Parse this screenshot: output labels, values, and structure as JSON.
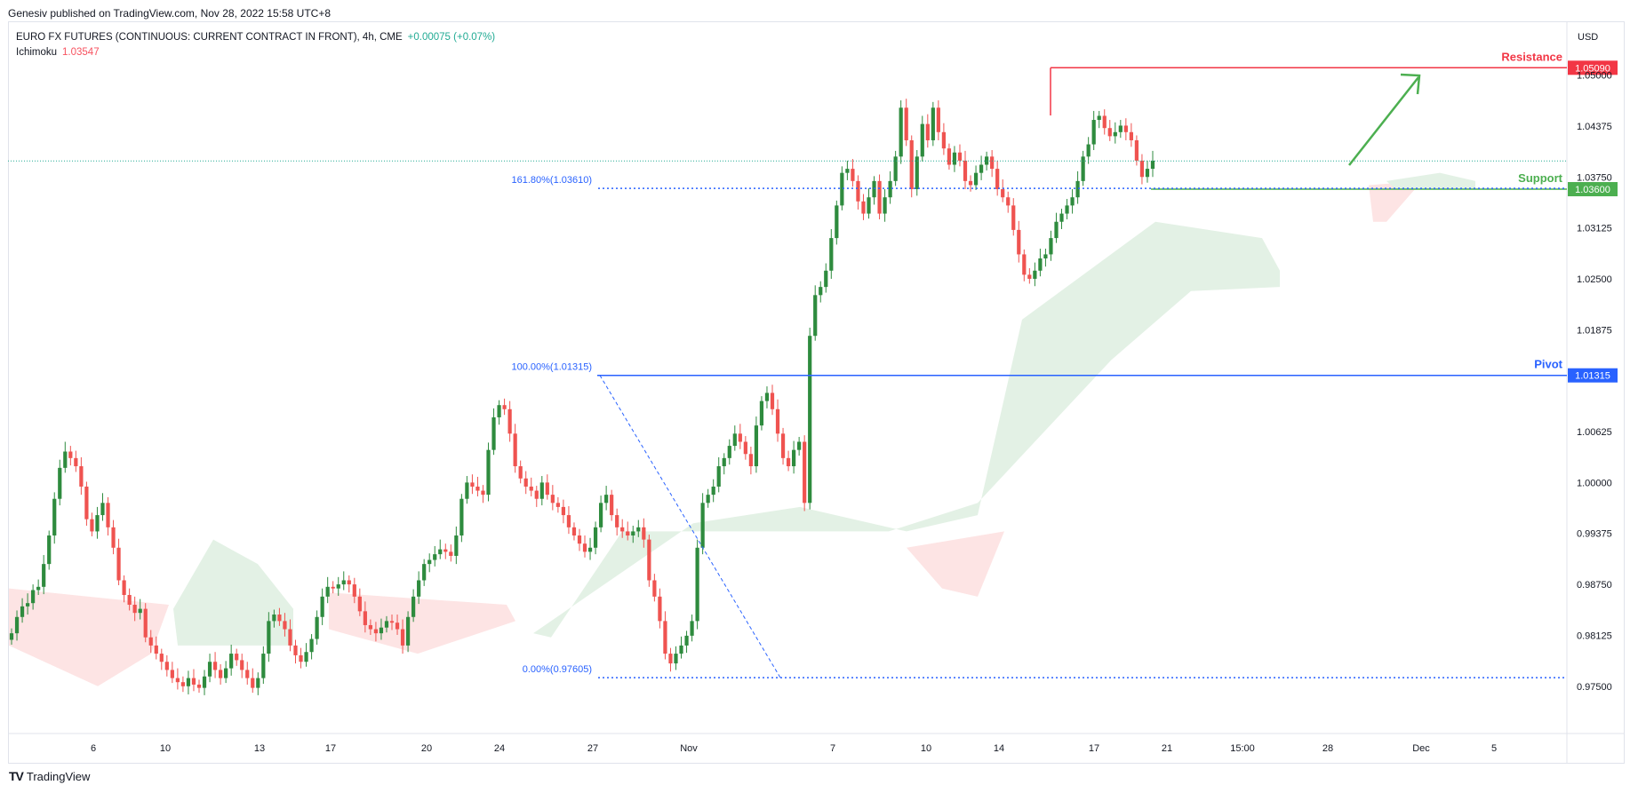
{
  "header": {
    "published": "Genesiv published on TradingView.com, Nov 28, 2022 15:58 UTC+8",
    "symbol": "EURO FX FUTURES (CONTINUOUS: CURRENT CONTRACT IN FRONT), 4h, CME",
    "change": "+0.00075 (+0.07%)",
    "indicator_name": "Ichimoku",
    "indicator_value": "1.03547"
  },
  "footer": {
    "brand": "TradingView",
    "logo_glyph": "TV"
  },
  "chart_data": {
    "type": "candlestick",
    "currency": "USD",
    "ylim": [
      0.9692,
      1.0566
    ],
    "y_ticks": [
      "1.05000",
      "1.04375",
      "1.03750",
      "1.03125",
      "1.02500",
      "1.01875",
      "1.00625",
      "1.00000",
      "0.99375",
      "0.98750",
      "0.98125",
      "0.97500"
    ],
    "x_ticks": [
      "6",
      "10",
      "13",
      "17",
      "20",
      "24",
      "27",
      "Nov",
      "7",
      "10",
      "14",
      "17",
      "21",
      "15:00",
      "28",
      "Dec",
      "5"
    ],
    "colors": {
      "up": "#22ab94",
      "down": "#f7525f",
      "up_body": "#2e8b3e",
      "down_body": "#ef5350",
      "cloud_bull": "#e3f1e5",
      "cloud_bear": "#fde4e4",
      "resistance": "#f23645",
      "support": "#4caf50",
      "pivot": "#2962ff",
      "fib": "#2962ff"
    },
    "levels": [
      {
        "label": "Resistance",
        "price": 1.0509,
        "tag": "1.05090"
      },
      {
        "label": "Support",
        "price": 1.036,
        "tag": "1.03600"
      },
      {
        "label": "Pivot",
        "price": 1.01315,
        "tag": "1.01315"
      }
    ],
    "fibonacci": [
      {
        "label": "161.80%(1.03610)",
        "price": 1.0361
      },
      {
        "label": "100.00%(1.01315)",
        "price": 1.01315
      },
      {
        "label": "0.00%(0.97605)",
        "price": 0.97605
      }
    ],
    "last_price": 1.03947,
    "candles_note": "Approximate closes of 4h candles read from the chart, oldest to newest",
    "closes": [
      0.9815,
      0.9835,
      0.9848,
      0.9852,
      0.9868,
      0.9872,
      0.99,
      0.9935,
      0.998,
      1.0018,
      1.0038,
      1.003,
      1.002,
      0.9995,
      0.9955,
      0.994,
      0.996,
      0.9975,
      0.9945,
      0.992,
      0.988,
      0.9862,
      0.985,
      0.984,
      0.9845,
      0.981,
      0.98,
      0.979,
      0.978,
      0.977,
      0.976,
      0.9755,
      0.975,
      0.976,
      0.9752,
      0.9748,
      0.9762,
      0.978,
      0.977,
      0.976,
      0.9772,
      0.979,
      0.9782,
      0.977,
      0.976,
      0.9748,
      0.976,
      0.979,
      0.983,
      0.9838,
      0.983,
      0.982,
      0.98,
      0.9788,
      0.978,
      0.9792,
      0.9808,
      0.9835,
      0.986,
      0.9872,
      0.987,
      0.9875,
      0.988,
      0.9875,
      0.986,
      0.9842,
      0.9825,
      0.982,
      0.9815,
      0.9822,
      0.983,
      0.9828,
      0.982,
      0.98,
      0.9835,
      0.986,
      0.988,
      0.99,
      0.9905,
      0.9912,
      0.9918,
      0.9915,
      0.991,
      0.9935,
      0.998,
      1.0,
      0.9995,
      0.999,
      0.9985,
      1.004,
      1.008,
      1.0095,
      1.009,
      1.006,
      1.002,
      1.0005,
      0.9995,
      0.999,
      0.998,
      1.0,
      0.9985,
      0.9975,
      0.997,
      0.996,
      0.9945,
      0.9935,
      0.9925,
      0.9915,
      0.992,
      0.9945,
      0.9975,
      0.9985,
      0.996,
      0.9945,
      0.994,
      0.9935,
      0.994,
      0.9945,
      0.993,
      0.988,
      0.986,
      0.983,
      0.979,
      0.9778,
      0.979,
      0.98,
      0.9812,
      0.983,
      0.992,
      0.9975,
      0.9985,
      0.9995,
      1.002,
      1.003,
      1.0045,
      1.006,
      1.005,
      1.0035,
      1.002,
      1.007,
      1.01,
      1.011,
      1.009,
      1.006,
      1.003,
      1.002,
      1.004,
      1.005,
      0.9975,
      1.018,
      1.023,
      1.024,
      1.026,
      1.03,
      1.034,
      1.038,
      1.0385,
      1.037,
      1.0345,
      1.033,
      1.035,
      1.037,
      1.033,
      1.035,
      1.037,
      1.04,
      1.046,
      1.042,
      1.036,
      1.04,
      1.044,
      1.042,
      1.046,
      1.043,
      1.041,
      1.039,
      1.0405,
      1.0395,
      1.037,
      1.0365,
      1.038,
      1.039,
      1.04,
      1.0385,
      1.036,
      1.035,
      1.034,
      1.031,
      1.028,
      1.0255,
      1.025,
      1.026,
      1.0275,
      1.028,
      1.03,
      1.032,
      1.033,
      1.034,
      1.035,
      1.037,
      1.04,
      1.0415,
      1.0445,
      1.045,
      1.0435,
      1.0425,
      1.043,
      1.0438,
      1.043,
      1.042,
      1.0395,
      1.0375,
      1.0385,
      1.0395
    ]
  }
}
